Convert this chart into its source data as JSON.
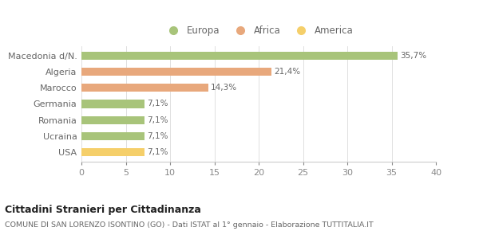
{
  "categories": [
    "Macedonia d/N.",
    "Algeria",
    "Marocco",
    "Germania",
    "Romania",
    "Ucraina",
    "USA"
  ],
  "values": [
    35.7,
    21.4,
    14.3,
    7.1,
    7.1,
    7.1,
    7.1
  ],
  "labels": [
    "35,7%",
    "21,4%",
    "14,3%",
    "7,1%",
    "7,1%",
    "7,1%",
    "7,1%"
  ],
  "colors": [
    "#a8c47a",
    "#e8a87c",
    "#e8a87c",
    "#a8c47a",
    "#a8c47a",
    "#a8c47a",
    "#f5cf6a"
  ],
  "legend_items": [
    {
      "label": "Europa",
      "color": "#a8c47a"
    },
    {
      "label": "Africa",
      "color": "#e8a87c"
    },
    {
      "label": "America",
      "color": "#f5cf6a"
    }
  ],
  "xlim": [
    0,
    40
  ],
  "xticks": [
    0,
    5,
    10,
    15,
    20,
    25,
    30,
    35,
    40
  ],
  "title_main": "Cittadini Stranieri per Cittadinanza",
  "title_sub": "COMUNE DI SAN LORENZO ISONTINO (GO) - Dati ISTAT al 1° gennaio - Elaborazione TUTTITALIA.IT",
  "background_color": "#ffffff",
  "bar_height": 0.5
}
